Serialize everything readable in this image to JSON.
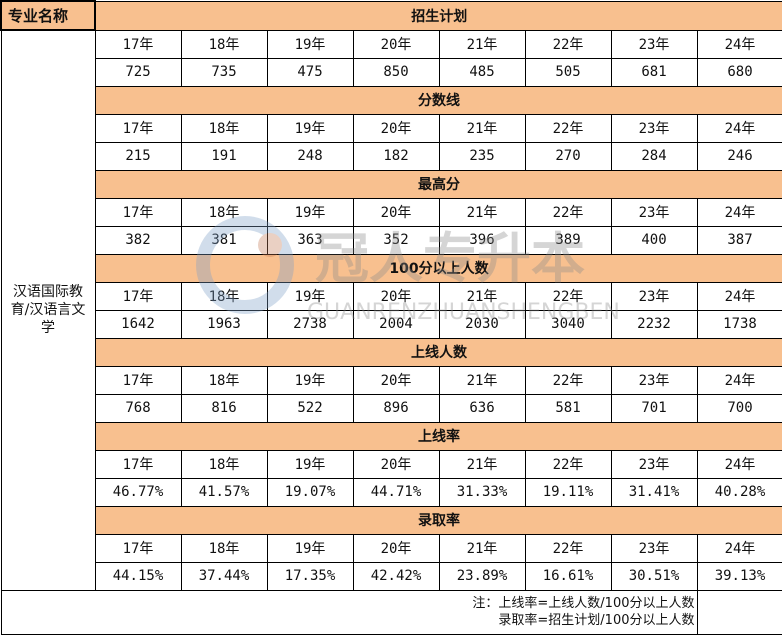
{
  "header": {
    "corner_label": "专业名称"
  },
  "major": "汉语国际教育/汉语言文学",
  "sections": [
    {
      "title": "招生计划",
      "years": [
        "17年",
        "18年",
        "19年",
        "20年",
        "21年",
        "22年",
        "23年",
        "24年"
      ],
      "values": [
        "725",
        "735",
        "475",
        "850",
        "485",
        "505",
        "681",
        "680"
      ]
    },
    {
      "title": "分数线",
      "years": [
        "17年",
        "18年",
        "19年",
        "20年",
        "21年",
        "22年",
        "23年",
        "24年"
      ],
      "values": [
        "215",
        "191",
        "248",
        "182",
        "235",
        "270",
        "284",
        "246"
      ]
    },
    {
      "title": "最高分",
      "years": [
        "17年",
        "18年",
        "19年",
        "20年",
        "21年",
        "22年",
        "23年",
        "24年"
      ],
      "values": [
        "382",
        "381",
        "363",
        "352",
        "396",
        "389",
        "400",
        "387"
      ]
    },
    {
      "title": "100分以上人数",
      "years": [
        "17年",
        "18年",
        "19年",
        "20年",
        "21年",
        "22年",
        "23年",
        "24年"
      ],
      "values": [
        "1642",
        "1963",
        "2738",
        "2004",
        "2030",
        "3040",
        "2232",
        "1738"
      ]
    },
    {
      "title": "上线人数",
      "years": [
        "17年",
        "18年",
        "19年",
        "20年",
        "21年",
        "22年",
        "23年",
        "24年"
      ],
      "values": [
        "768",
        "816",
        "522",
        "896",
        "636",
        "581",
        "701",
        "700"
      ]
    },
    {
      "title": "上线率",
      "years": [
        "17年",
        "18年",
        "19年",
        "20年",
        "21年",
        "22年",
        "23年",
        "24年"
      ],
      "values": [
        "46.77%",
        "41.57%",
        "19.07%",
        "44.71%",
        "31.33%",
        "19.11%",
        "31.41%",
        "40.28%"
      ]
    },
    {
      "title": "录取率",
      "years": [
        "17年",
        "18年",
        "19年",
        "20年",
        "21年",
        "22年",
        "23年",
        "24年"
      ],
      "values": [
        "44.15%",
        "37.44%",
        "17.35%",
        "42.42%",
        "23.89%",
        "16.61%",
        "30.51%",
        "39.13%"
      ]
    }
  ],
  "note": {
    "line1": "注：上线率=上线人数/100分以上人数",
    "line2": "录取率=招生计划/100分以上人数"
  },
  "watermark": {
    "cn": "冠人专升本",
    "en": "GUANRENZHUANSHENGBEN"
  },
  "colors": {
    "header_bg": "#f8c08f"
  }
}
